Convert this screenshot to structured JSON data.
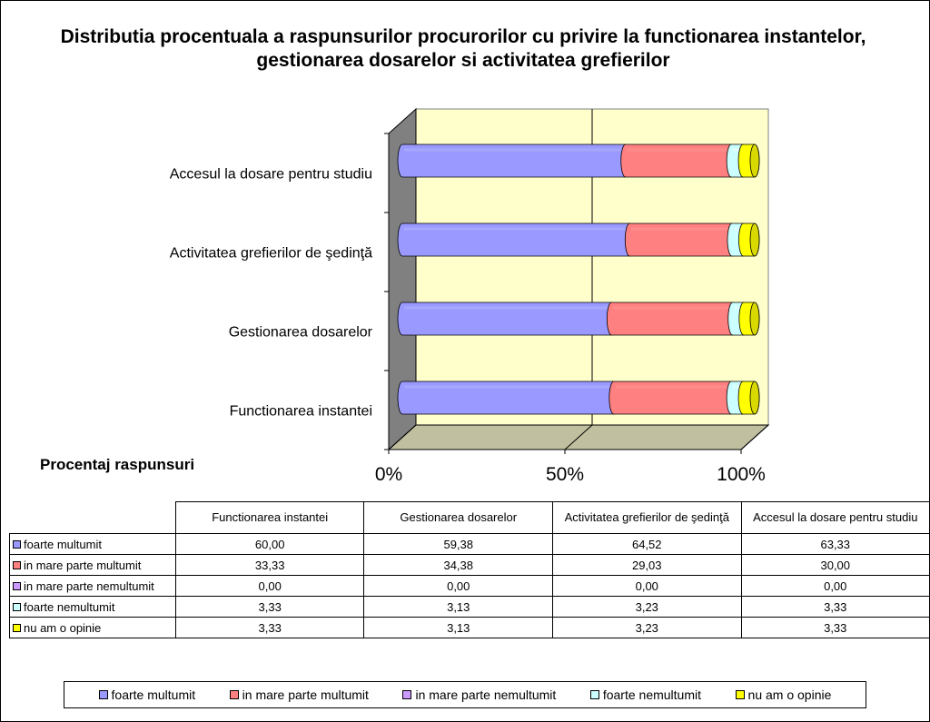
{
  "chart_data": {
    "type": "bar",
    "orientation": "horizontal",
    "stacked": "percent",
    "style": "3d-cylinder",
    "title": "Distributia procentuala a raspunsurilor procurorilor cu privire la functionarea instantelor, gestionarea dosarelor si activitatea grefierilor",
    "xlabel": "Procentaj raspunsuri",
    "ylabel": "",
    "xlim": [
      0,
      100
    ],
    "x_ticks": [
      "0%",
      "50%",
      "100%"
    ],
    "categories": [
      "Functionarea instantei",
      "Gestionarea dosarelor",
      "Activitatea grefierilor de şedinţă",
      "Accesul la dosare pentru studiu"
    ],
    "series": [
      {
        "name": "foarte multumit",
        "color": "#9999ff",
        "values": [
          60.0,
          59.38,
          64.52,
          63.33
        ],
        "labels": [
          "60,00",
          "59,38",
          "64,52",
          "63,33"
        ]
      },
      {
        "name": "in mare parte multumit",
        "color": "#ff8080",
        "values": [
          33.33,
          34.38,
          29.03,
          30.0
        ],
        "labels": [
          "33,33",
          "34,38",
          "29,03",
          "30,00"
        ]
      },
      {
        "name": "in mare parte nemultumit",
        "color": "#cc99ff",
        "values": [
          0.0,
          0.0,
          0.0,
          0.0
        ],
        "labels": [
          "0,00",
          "0,00",
          "0,00",
          "0,00"
        ]
      },
      {
        "name": "foarte nemultumit",
        "color": "#ccffff",
        "values": [
          3.33,
          3.13,
          3.23,
          3.33
        ],
        "labels": [
          "3,33",
          "3,13",
          "3,23",
          "3,33"
        ]
      },
      {
        "name": "nu am o opinie",
        "color": "#ffff00",
        "values": [
          3.33,
          3.13,
          3.23,
          3.33
        ],
        "labels": [
          "3,33",
          "3,13",
          "3,23",
          "3,33"
        ]
      }
    ],
    "table_headers": [
      "Functionarea instantei",
      "Gestionarea dosarelor",
      "Activitatea grefierilor de şedinţă",
      "Accesul la dosare pentru studiu"
    ],
    "grid": true,
    "legend_position": "bottom",
    "colors": {
      "plot_background": "#ffffcc",
      "side_wall": "#808080",
      "floor": "#c0c0a0"
    }
  }
}
